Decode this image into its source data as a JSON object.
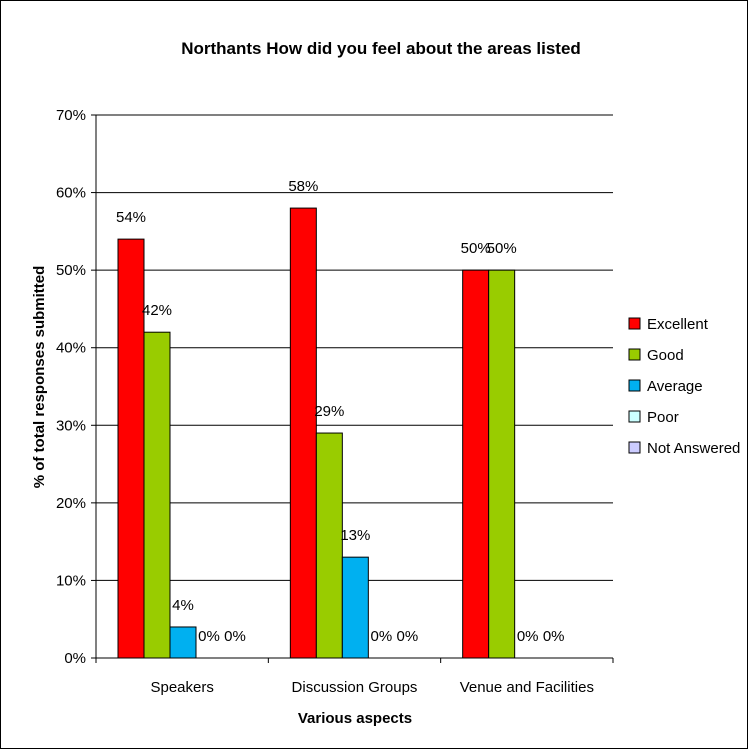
{
  "chart_data": {
    "type": "bar",
    "title": "Northants How did you feel about the areas listed",
    "xlabel": "Various aspects",
    "ylabel": "% of total responses submitted",
    "categories": [
      "Speakers",
      "Discussion Groups",
      "Venue and Facilities"
    ],
    "ylim": [
      0,
      70
    ],
    "yticks": [
      "0%",
      "10%",
      "20%",
      "30%",
      "40%",
      "50%",
      "60%",
      "70%"
    ],
    "grid": true,
    "legend_position": "right",
    "series": [
      {
        "name": "Excellent",
        "color": "#ff0000",
        "values": [
          54,
          58,
          50
        ],
        "labels": [
          "54%",
          "58%",
          "50%"
        ]
      },
      {
        "name": "Good",
        "color": "#99cc00",
        "values": [
          42,
          29,
          50
        ],
        "labels": [
          "42%",
          "29%",
          "50%"
        ]
      },
      {
        "name": "Average",
        "color": "#00b0f0",
        "values": [
          4,
          13,
          0
        ],
        "labels": [
          "4%",
          "13%",
          "0%"
        ]
      },
      {
        "name": "Poor",
        "color": "#ccffff",
        "values": [
          0,
          0,
          0
        ],
        "labels": [
          "0%",
          "0%",
          "0%"
        ]
      },
      {
        "name": "Not Answered",
        "color": "#ccccff",
        "values": [
          0,
          0,
          null
        ],
        "labels": [
          "0%",
          "0%",
          ""
        ]
      }
    ]
  }
}
